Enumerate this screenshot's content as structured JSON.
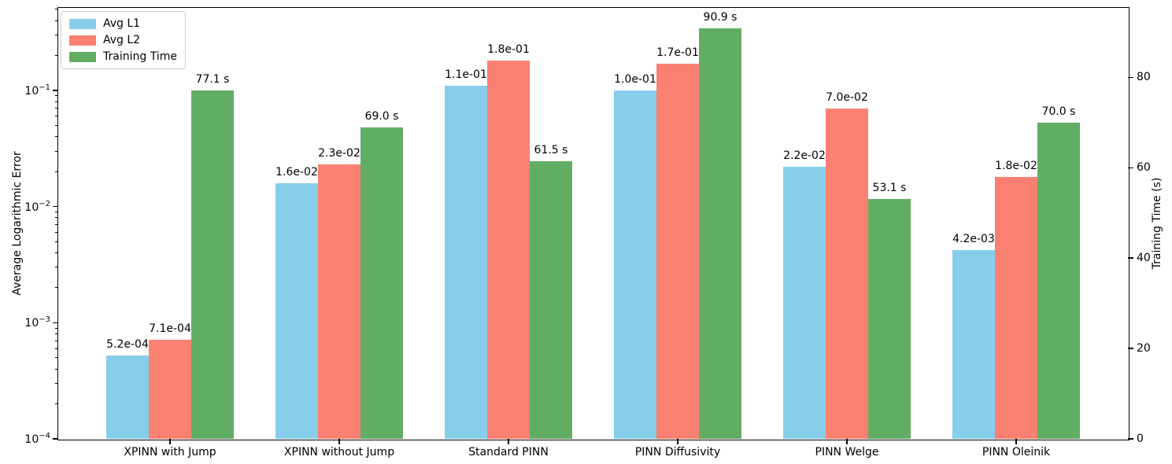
{
  "chart_data": {
    "type": "bar",
    "title": "",
    "categories": [
      "XPINN with Jump",
      "XPINN without Jump",
      "Standard PINN",
      "PINN Diffusivity",
      "PINN Welge",
      "PINN Oleinik"
    ],
    "series": [
      {
        "name": "Avg L1",
        "axis": "left",
        "color": "#87CEEB",
        "values": [
          0.00052,
          0.016,
          0.11,
          0.1,
          0.022,
          0.0042
        ],
        "labels": [
          "5.2e-04",
          "1.6e-02",
          "1.1e-01",
          "1.0e-01",
          "2.2e-02",
          "4.2e-03"
        ]
      },
      {
        "name": "Avg L2",
        "axis": "left",
        "color": "#FA8072",
        "values": [
          0.00071,
          0.023,
          0.18,
          0.17,
          0.07,
          0.018
        ],
        "labels": [
          "7.1e-04",
          "2.3e-02",
          "1.8e-01",
          "1.7e-01",
          "7.0e-02",
          "1.8e-02"
        ]
      },
      {
        "name": "Training Time",
        "axis": "right",
        "color": "#62AD64",
        "values": [
          77.1,
          69.0,
          61.5,
          90.9,
          53.1,
          70.0
        ],
        "labels": [
          "77.1 s",
          "69.0 s",
          "61.5 s",
          "90.9 s",
          "53.1 s",
          "70.0 s"
        ]
      }
    ],
    "left_axis": {
      "label": "Average Logarithmic Error",
      "scale": "log",
      "min": 0.0001,
      "max": 0.514,
      "tick_exponents": [
        -1,
        -2,
        -3,
        -4
      ]
    },
    "right_axis": {
      "label": "Training Time (s)",
      "scale": "linear",
      "min": 0,
      "max": 95.4,
      "ticks": [
        0,
        20,
        40,
        60,
        80
      ]
    },
    "legend": {
      "position": "upper left",
      "entries": [
        "Avg L1",
        "Avg L2",
        "Training Time"
      ]
    },
    "grid": false
  }
}
